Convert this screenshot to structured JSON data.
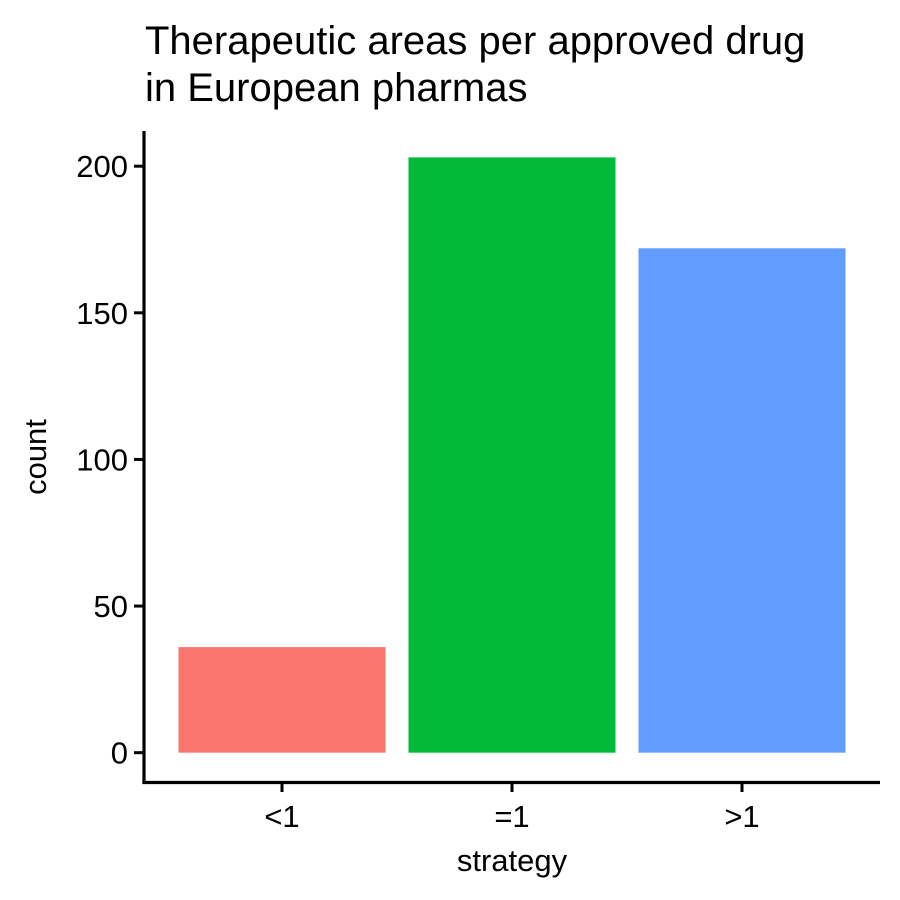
{
  "chart_data": {
    "type": "bar",
    "title_lines": [
      "Therapeutic areas per approved drug",
      "in European pharmas"
    ],
    "xlabel": "strategy",
    "ylabel": "count",
    "categories": [
      "<1",
      "=1",
      ">1"
    ],
    "values": [
      36,
      203,
      172
    ],
    "colors": [
      "#F8766D",
      "#00BA38",
      "#619CFF"
    ],
    "ylim": [
      -10,
      212
    ],
    "yticks": [
      0,
      50,
      100,
      150,
      200
    ],
    "grid": false,
    "legend": "none"
  }
}
